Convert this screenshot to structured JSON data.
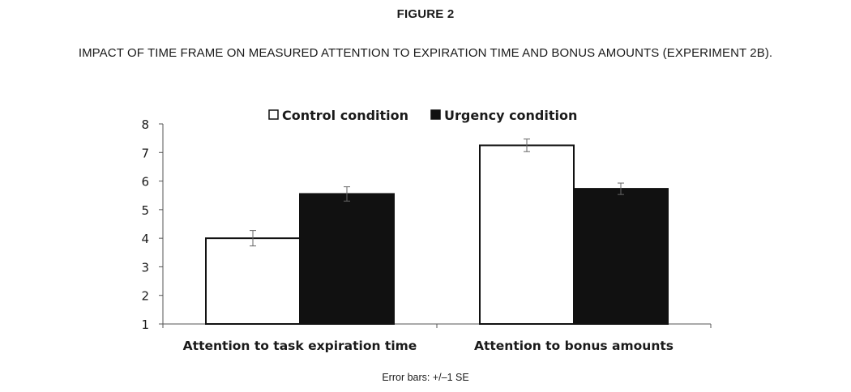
{
  "figure_label": "FIGURE 2",
  "figure_title": "IMPACT OF TIME FRAME ON MEASURED ATTENTION TO EXPIRATION TIME AND BONUS AMOUNTS (EXPERIMENT 2B).",
  "footnote": "Error bars: +/–1 SE",
  "chart_data": {
    "type": "bar",
    "categories": [
      "Attention to task expiration time",
      "Attention to bonus amounts"
    ],
    "series": [
      {
        "name": "Control condition",
        "values": [
          4.0,
          7.25
        ],
        "errors": [
          0.27,
          0.22
        ],
        "color": "#ffffff"
      },
      {
        "name": "Urgency condition",
        "values": [
          5.55,
          5.73
        ],
        "errors": [
          0.25,
          0.2
        ],
        "color": "#111111"
      }
    ],
    "ylim": [
      1,
      8
    ],
    "yticks": [
      "1",
      "2",
      "3",
      "4",
      "5",
      "6",
      "7",
      "8"
    ],
    "xlabel": "",
    "ylabel": "",
    "legend_position": "top-center",
    "grid": false
  }
}
